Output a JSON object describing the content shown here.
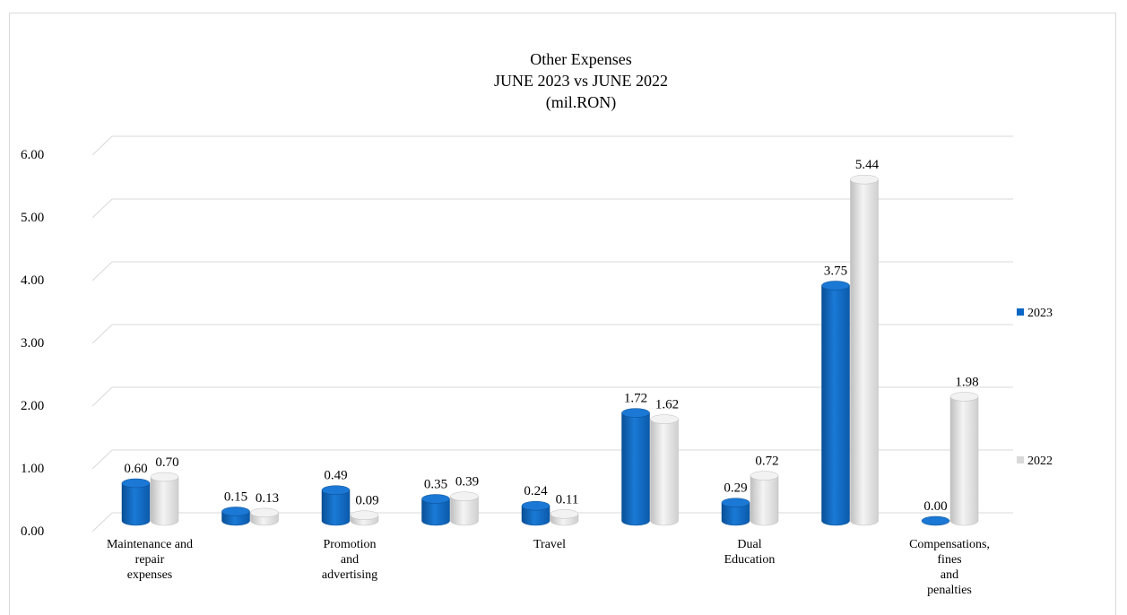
{
  "chart_data": {
    "type": "bar",
    "title_lines": [
      "Other Expenses",
      "JUNE 2023 vs JUNE 2022",
      "(mil.RON)"
    ],
    "categories": [
      [
        "Maintenance and",
        "repair",
        "expenses"
      ],
      [],
      [
        "Promotion",
        "and",
        "advertising"
      ],
      [],
      [
        "Travel"
      ],
      [],
      [
        "Dual",
        "Education"
      ],
      [],
      [
        "Compensations,",
        "fines",
        "and",
        "penalties"
      ]
    ],
    "series": [
      {
        "name": "2023",
        "values": [
          0.6,
          0.15,
          0.49,
          0.35,
          0.24,
          1.72,
          0.29,
          3.75,
          0.0
        ],
        "labels": [
          "0.60",
          "0.15",
          "0.49",
          "0.35",
          "0.24",
          "1.72",
          "0.29",
          "3.75",
          "0.00"
        ],
        "color": "#0a66c2"
      },
      {
        "name": "2022",
        "values": [
          0.7,
          0.13,
          0.09,
          0.39,
          0.11,
          1.62,
          0.72,
          5.44,
          1.98
        ],
        "labels": [
          "0.70",
          "0.13",
          "0.09",
          "0.39",
          "0.11",
          "1.62",
          "0.72",
          "5.44",
          "1.98"
        ],
        "color": "#d9d9d9"
      }
    ],
    "yticks": [
      "0.00",
      "1.00",
      "2.00",
      "3.00",
      "4.00",
      "5.00",
      "6.00"
    ],
    "ylim": [
      0,
      6
    ],
    "grid": true,
    "legend_position": "right"
  }
}
